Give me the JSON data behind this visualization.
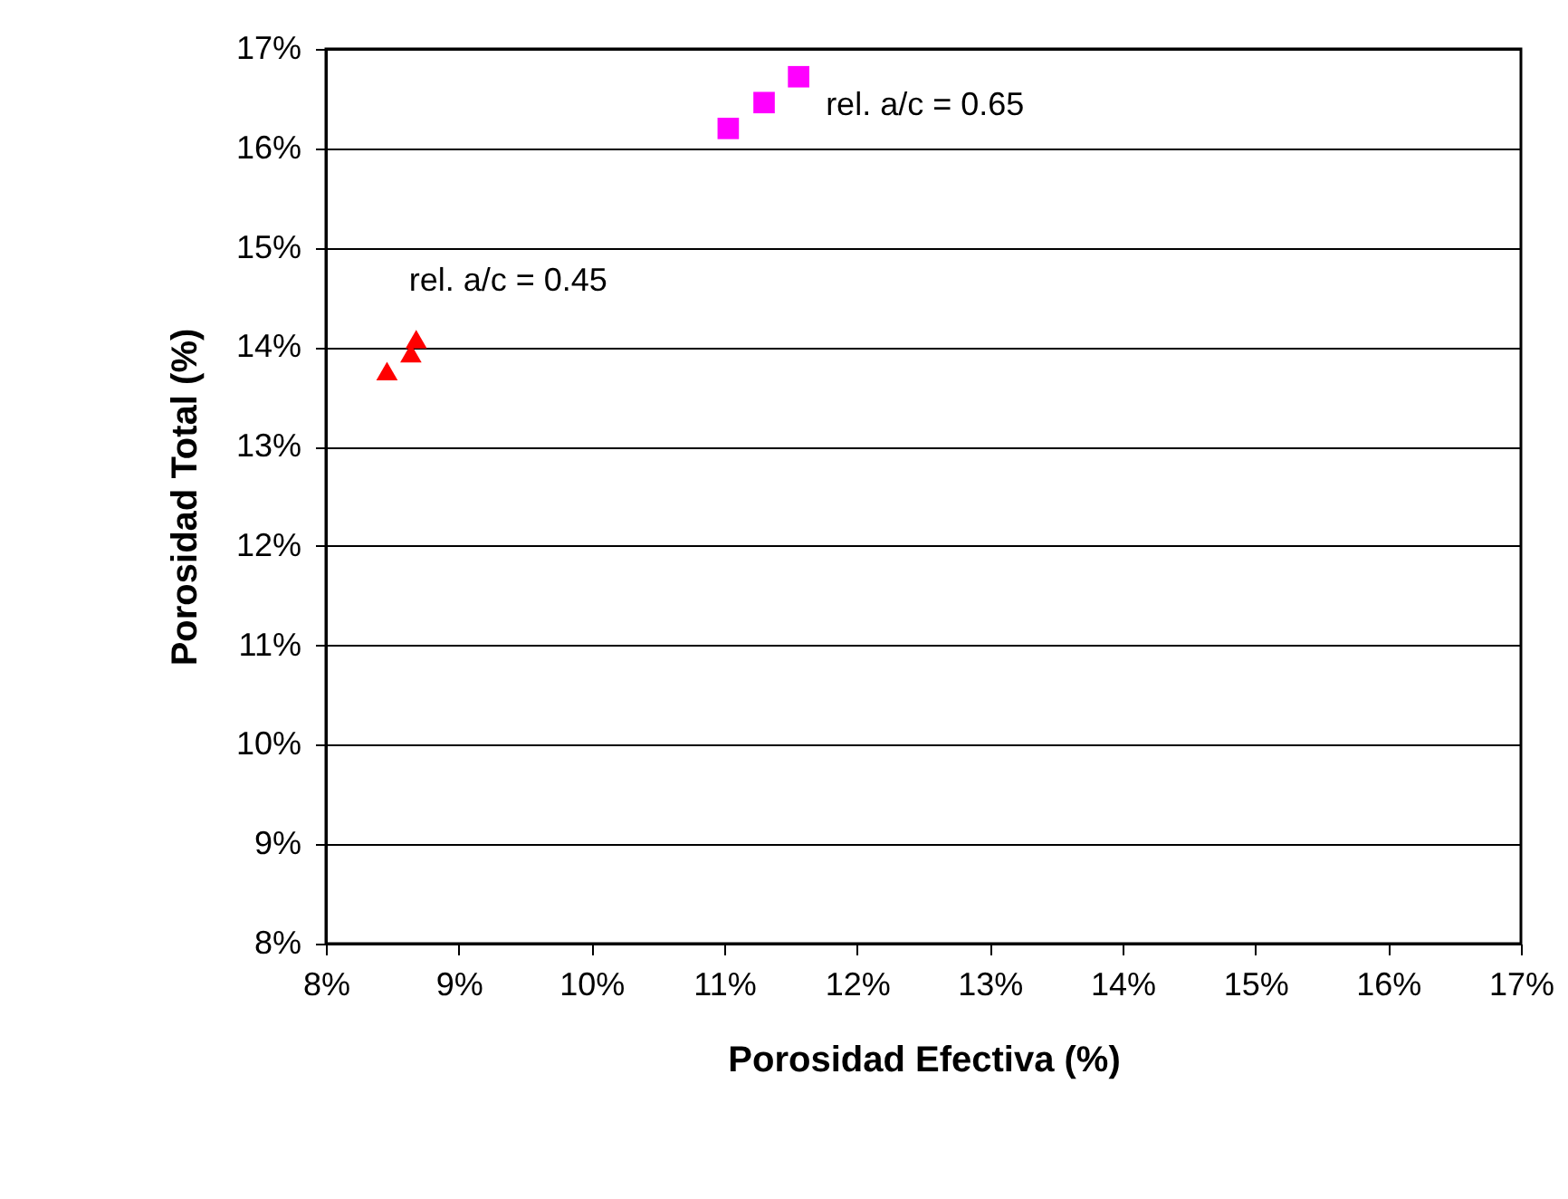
{
  "chart_data": {
    "type": "scatter",
    "xlabel": "Porosidad Efectiva (%)",
    "ylabel": "Porosidad Total (%)",
    "series": [
      {
        "color": "#ff0000",
        "marker": "triangle",
        "x": [
          8.46,
          8.64,
          8.68
        ],
        "values": [
          13.76,
          13.94,
          14.08
        ]
      },
      {
        "color": "#ff00ff",
        "marker": "square",
        "x": [
          11.03,
          11.3,
          11.56
        ],
        "values": [
          16.2,
          16.46,
          16.72
        ]
      }
    ],
    "annotations": [
      "rel. a/c = 0.45",
      "rel. a/c = 0.65"
    ],
    "xlim": [
      8,
      17
    ],
    "ylim": [
      8,
      17
    ],
    "xticks": [
      {
        "value": 8,
        "label": "8%"
      },
      {
        "value": 9,
        "label": "9%"
      },
      {
        "value": 10,
        "label": "10%"
      },
      {
        "value": 11,
        "label": "11%"
      },
      {
        "value": 12,
        "label": "12%"
      },
      {
        "value": 13,
        "label": "13%"
      },
      {
        "value": 14,
        "label": "14%"
      },
      {
        "value": 15,
        "label": "15%"
      },
      {
        "value": 16,
        "label": "16%"
      },
      {
        "value": 17,
        "label": "17%"
      }
    ],
    "yticks": [
      {
        "value": 8,
        "label": "8%"
      },
      {
        "value": 9,
        "label": "9%"
      },
      {
        "value": 10,
        "label": "10%"
      },
      {
        "value": 11,
        "label": "11%"
      },
      {
        "value": 12,
        "label": "12%"
      },
      {
        "value": 13,
        "label": "13%"
      },
      {
        "value": 14,
        "label": "14%"
      },
      {
        "value": 15,
        "label": "15%"
      },
      {
        "value": 16,
        "label": "16%"
      },
      {
        "value": 17,
        "label": "17%"
      }
    ],
    "grid": "y"
  }
}
